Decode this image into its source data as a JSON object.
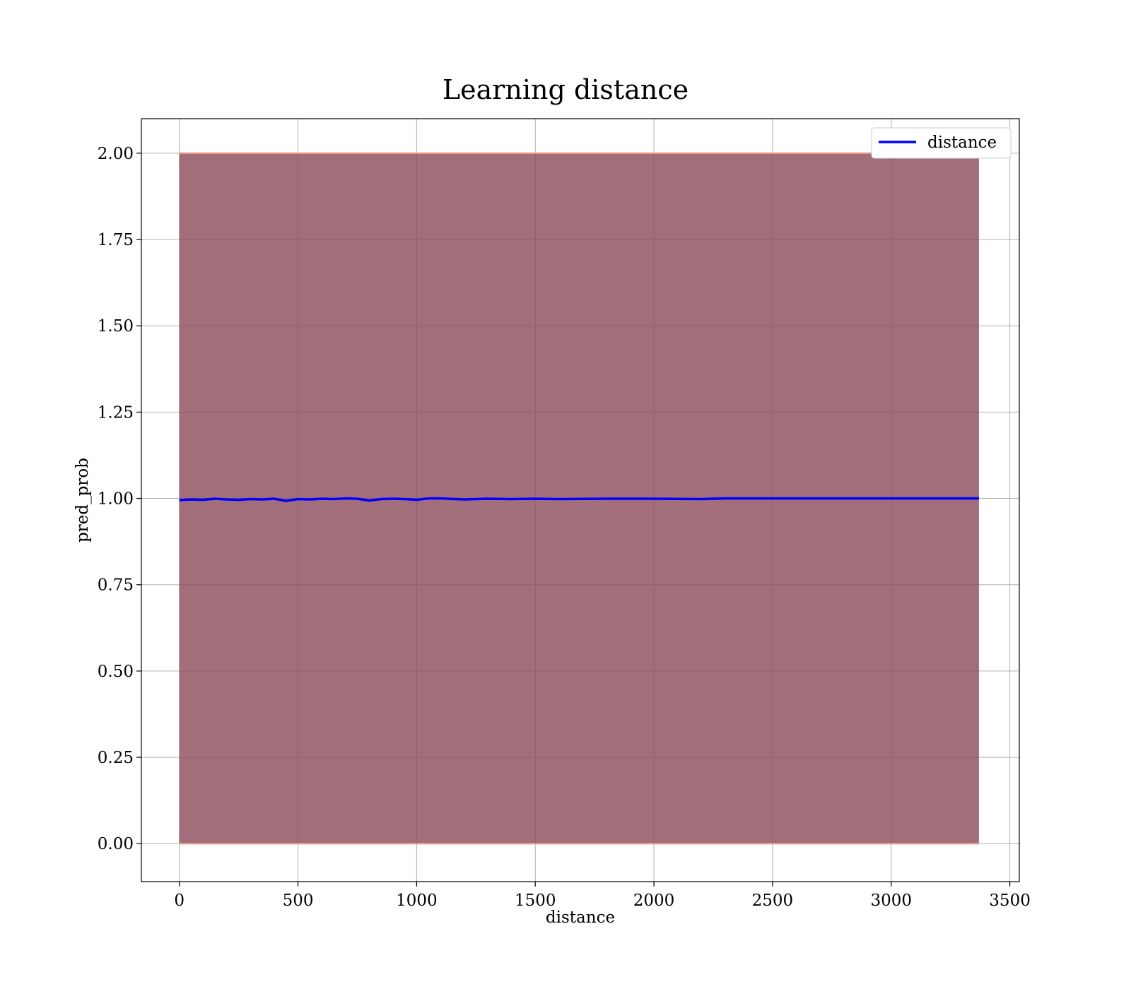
{
  "chart_data": {
    "type": "line",
    "title": "Learning distance",
    "xlabel": "distance",
    "ylabel": "pred_prob",
    "xlim": [
      -160,
      3540
    ],
    "ylim": [
      -0.11,
      2.1
    ],
    "xticks": [
      0,
      500,
      1000,
      1500,
      2000,
      2500,
      3000,
      3500
    ],
    "xtick_labels": [
      "0",
      "500",
      "1000",
      "1500",
      "2000",
      "2500",
      "3000",
      "3500"
    ],
    "yticks": [
      0.0,
      0.25,
      0.5,
      0.75,
      1.0,
      1.25,
      1.5,
      1.75,
      2.0
    ],
    "ytick_labels": [
      "0.00",
      "0.25",
      "0.50",
      "0.75",
      "1.00",
      "1.25",
      "1.50",
      "1.75",
      "2.00"
    ],
    "grid": true,
    "legend_position": "top-right",
    "colors": {
      "line": "#0000ff",
      "band": "#8b4a5a",
      "band_edge": "#f0a080"
    },
    "band": {
      "x": [
        0,
        3370
      ],
      "lower": [
        -0.005,
        0.0
      ],
      "upper": [
        1.995,
        2.0
      ]
    },
    "series": [
      {
        "name": "distance",
        "x": [
          0,
          50,
          100,
          150,
          200,
          250,
          300,
          350,
          400,
          450,
          500,
          550,
          600,
          650,
          700,
          750,
          800,
          850,
          900,
          950,
          1000,
          1050,
          1100,
          1200,
          1300,
          1400,
          1500,
          1600,
          1800,
          2000,
          2200,
          2300,
          2500,
          2800,
          3000,
          3200,
          3370
        ],
        "y": [
          0.995,
          0.997,
          0.996,
          0.999,
          0.997,
          0.996,
          0.998,
          0.997,
          0.999,
          0.993,
          0.998,
          0.997,
          0.999,
          0.998,
          1.0,
          0.999,
          0.994,
          0.998,
          0.999,
          0.998,
          0.996,
          1.0,
          1.0,
          0.997,
          0.999,
          0.998,
          0.999,
          0.998,
          0.999,
          0.999,
          0.998,
          1.0,
          1.0,
          1.0,
          1.0,
          1.0,
          1.0
        ]
      }
    ]
  }
}
